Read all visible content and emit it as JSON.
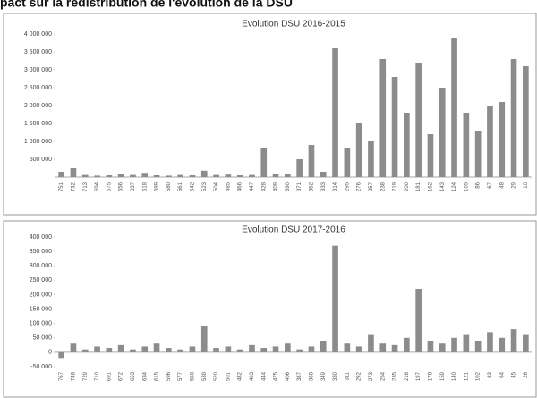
{
  "header": {
    "title": "pact sur la redistribution de l'évolution de la DSU"
  },
  "chart_data": [
    {
      "type": "bar",
      "title": "Evolution DSU 2016-2015",
      "color": "#8c8c8c",
      "categories": [
        "751",
        "732",
        "713",
        "694",
        "675",
        "656",
        "637",
        "618",
        "599",
        "580",
        "561",
        "542",
        "523",
        "504",
        "485",
        "466",
        "447",
        "428",
        "409",
        "390",
        "371",
        "352",
        "333",
        "314",
        "295",
        "276",
        "257",
        "238",
        "219",
        "200",
        "181",
        "162",
        "143",
        "124",
        "105",
        "86",
        "67",
        "48",
        "29",
        "10"
      ],
      "values": [
        150000,
        250000,
        60000,
        40000,
        50000,
        80000,
        60000,
        120000,
        50000,
        40000,
        60000,
        50000,
        180000,
        60000,
        70000,
        50000,
        60000,
        800000,
        90000,
        100000,
        500000,
        900000,
        150000,
        3600000,
        800000,
        1500000,
        1000000,
        3300000,
        2800000,
        1800000,
        3200000,
        1200000,
        2500000,
        3900000,
        1800000,
        1300000,
        2000000,
        2100000,
        3300000,
        3100000
      ],
      "ylim": [
        0,
        4000000
      ],
      "yticks": [
        {
          "value": 500000,
          "label": "500 000"
        },
        {
          "value": 1000000,
          "label": "1 000 000"
        },
        {
          "value": 1500000,
          "label": "1 500 000"
        },
        {
          "value": 2000000,
          "label": "2 000 000"
        },
        {
          "value": 2500000,
          "label": "2 500 000"
        },
        {
          "value": 3000000,
          "label": "3 000 000"
        },
        {
          "value": 3500000,
          "label": "3 500 000"
        },
        {
          "value": 4000000,
          "label": "4 000 000"
        }
      ]
    },
    {
      "type": "bar",
      "title": "Evolution DSU 2017-2016",
      "color": "#8c8c8c",
      "categories": [
        "767",
        "748",
        "729",
        "710",
        "691",
        "672",
        "653",
        "634",
        "615",
        "596",
        "577",
        "558",
        "539",
        "520",
        "501",
        "482",
        "463",
        "444",
        "425",
        "406",
        "387",
        "368",
        "349",
        "330",
        "311",
        "292",
        "273",
        "254",
        "235",
        "216",
        "197",
        "178",
        "159",
        "140",
        "121",
        "102",
        "83",
        "64",
        "45",
        "26"
      ],
      "values": [
        -20000,
        30000,
        10000,
        20000,
        15000,
        25000,
        10000,
        20000,
        30000,
        15000,
        10000,
        20000,
        90000,
        15000,
        20000,
        10000,
        25000,
        15000,
        20000,
        30000,
        10000,
        20000,
        40000,
        370000,
        30000,
        20000,
        60000,
        30000,
        25000,
        50000,
        220000,
        40000,
        30000,
        50000,
        60000,
        40000,
        70000,
        50000,
        80000,
        60000
      ],
      "ylim": [
        -50000,
        400000
      ],
      "yticks": [
        {
          "value": -50000,
          "label": "-50 000"
        },
        0,
        {
          "value": 50000,
          "label": "50 000"
        },
        {
          "value": 100000,
          "label": "100 000"
        },
        {
          "value": 150000,
          "label": "150 000"
        },
        {
          "value": 200000,
          "label": "200 000"
        },
        {
          "value": 250000,
          "label": "250 000"
        },
        {
          "value": 300000,
          "label": "300 000"
        },
        {
          "value": 350000,
          "label": "350 000"
        },
        {
          "value": 400000,
          "label": "400 000"
        }
      ]
    }
  ]
}
